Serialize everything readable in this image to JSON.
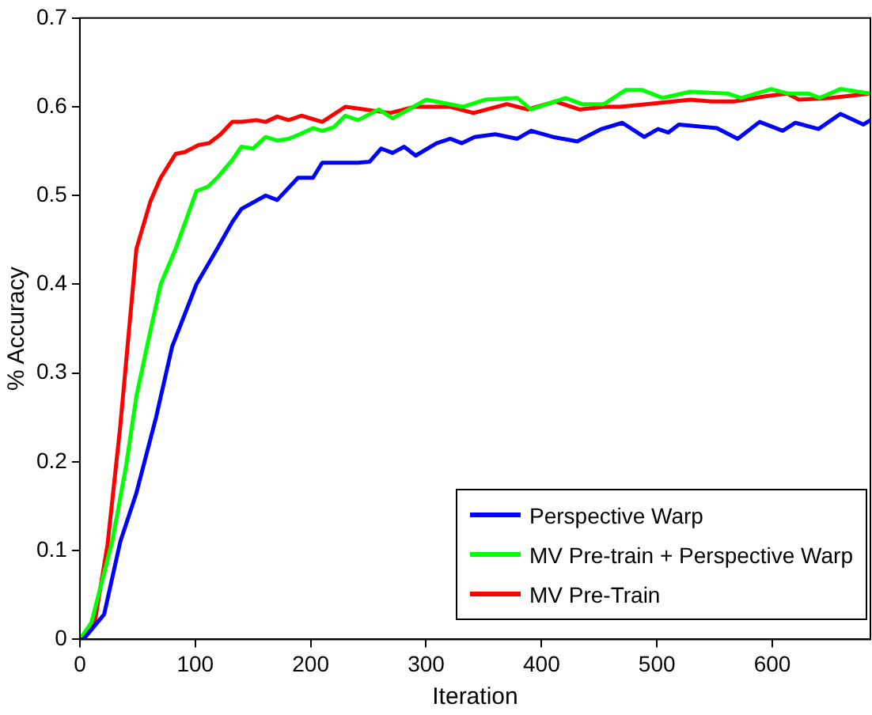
{
  "chart_data": {
    "type": "line",
    "xlabel": "Iteration",
    "ylabel": "% Accuracy",
    "xlim": [
      0,
      685
    ],
    "ylim": [
      0,
      0.7
    ],
    "xticks": [
      0,
      100,
      200,
      300,
      400,
      500,
      600
    ],
    "yticks": [
      0,
      0.1,
      0.2,
      0.3,
      0.4,
      0.5,
      0.6,
      0.7
    ],
    "grid": false,
    "legend": "bottom right",
    "marker": "none",
    "line_style": "solid",
    "series": [
      {
        "name": "Perspective Warp",
        "color": "#0000ff",
        "x": [
          0,
          3,
          21,
          35,
          49,
          66,
          80,
          101,
          119,
          132,
          140,
          161,
          171,
          189,
          202,
          210,
          241,
          251,
          261,
          271,
          281,
          291,
          309,
          321,
          331,
          342,
          360,
          379,
          391,
          410,
          431,
          452,
          470,
          489,
          501,
          510,
          519,
          552,
          570,
          589,
          609,
          620,
          640,
          659,
          679,
          685
        ],
        "values": [
          0,
          0,
          0.028,
          0.11,
          0.165,
          0.25,
          0.33,
          0.4,
          0.44,
          0.47,
          0.485,
          0.5,
          0.495,
          0.52,
          0.52,
          0.537,
          0.537,
          0.538,
          0.553,
          0.548,
          0.555,
          0.545,
          0.559,
          0.564,
          0.559,
          0.566,
          0.569,
          0.564,
          0.573,
          0.566,
          0.561,
          0.575,
          0.582,
          0.566,
          0.575,
          0.571,
          0.58,
          0.576,
          0.564,
          0.583,
          0.573,
          0.582,
          0.575,
          0.592,
          0.58,
          0.585
        ]
      },
      {
        "name": "MV Pre-train + Perspective Warp",
        "color": "#00ff00",
        "x": [
          0,
          10,
          28,
          40,
          49,
          59,
          70,
          83,
          101,
          111,
          119,
          132,
          140,
          150,
          161,
          171,
          181,
          192,
          202,
          210,
          220,
          230,
          241,
          259,
          271,
          300,
          332,
          351,
          379,
          391,
          421,
          435,
          454,
          473,
          487,
          505,
          529,
          561,
          573,
          599,
          613,
          631,
          641,
          659,
          685
        ],
        "values": [
          0,
          0.019,
          0.11,
          0.195,
          0.274,
          0.335,
          0.4,
          0.44,
          0.505,
          0.51,
          0.52,
          0.54,
          0.555,
          0.553,
          0.566,
          0.562,
          0.564,
          0.57,
          0.576,
          0.573,
          0.577,
          0.59,
          0.585,
          0.597,
          0.587,
          0.608,
          0.6,
          0.608,
          0.61,
          0.597,
          0.61,
          0.603,
          0.603,
          0.619,
          0.619,
          0.61,
          0.617,
          0.615,
          0.61,
          0.62,
          0.615,
          0.615,
          0.61,
          0.62,
          0.615
        ]
      },
      {
        "name": "MV Pre-Train",
        "color": "#ff0000",
        "x": [
          0,
          13,
          24,
          35,
          49,
          61,
          70,
          83,
          91,
          103,
          112,
          122,
          132,
          140,
          153,
          161,
          171,
          181,
          192,
          210,
          230,
          269,
          290,
          321,
          341,
          370,
          388,
          412,
          433,
          454,
          468,
          491,
          529,
          547,
          567,
          595,
          613,
          623,
          651,
          685
        ],
        "values": [
          0,
          0.02,
          0.107,
          0.24,
          0.44,
          0.493,
          0.52,
          0.547,
          0.549,
          0.557,
          0.559,
          0.569,
          0.583,
          0.583,
          0.585,
          0.583,
          0.589,
          0.585,
          0.59,
          0.583,
          0.6,
          0.593,
          0.6,
          0.6,
          0.593,
          0.603,
          0.597,
          0.606,
          0.597,
          0.6,
          0.6,
          0.603,
          0.608,
          0.606,
          0.606,
          0.612,
          0.615,
          0.608,
          0.61,
          0.615
        ]
      }
    ]
  }
}
